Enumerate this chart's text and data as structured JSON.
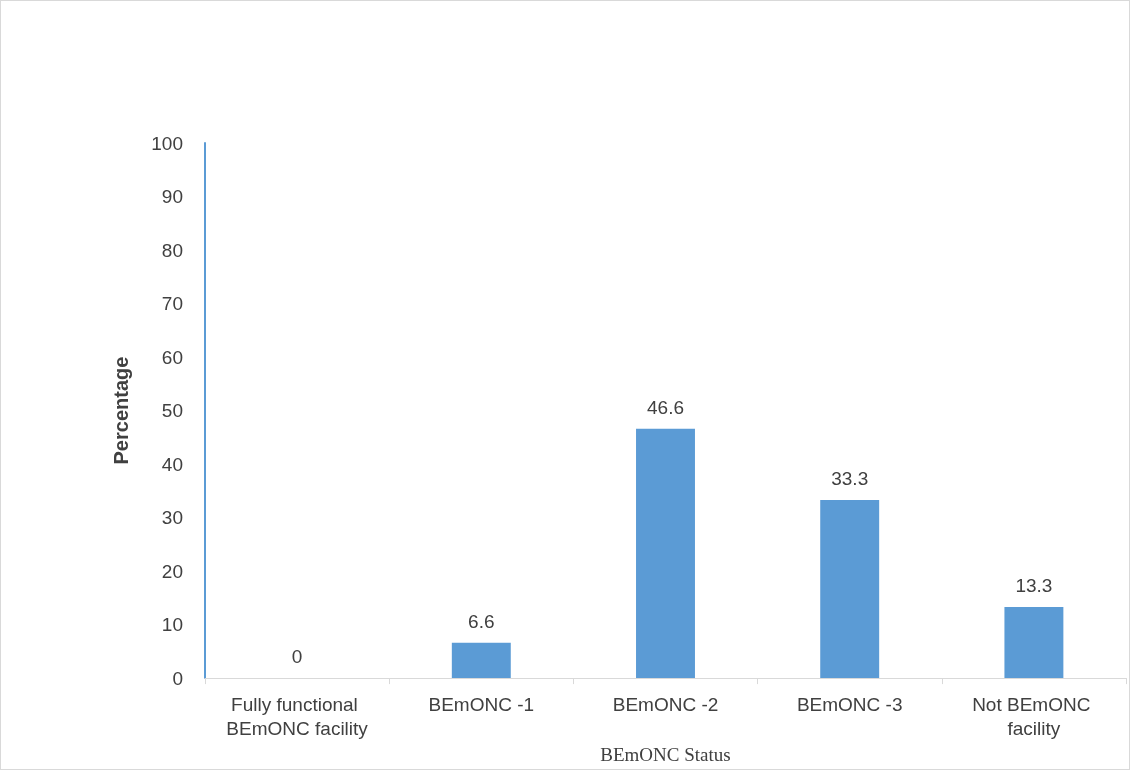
{
  "chart_data": {
    "type": "bar",
    "xlabel": "BEmONC Status",
    "ylabel": "Percentage",
    "categories": [
      "Fully functional BEmONC facility",
      "BEmONC -1",
      "BEmONC -2",
      "BEmONC -3",
      "Not BEmONC facility"
    ],
    "values": [
      0,
      6.6,
      46.6,
      33.3,
      13.3
    ],
    "color": "#5b9bd5",
    "ylim": [
      0,
      100
    ],
    "yticks": [
      0,
      10,
      20,
      30,
      40,
      50,
      60,
      70,
      80,
      90,
      100
    ],
    "grid": false,
    "data_labels": true
  }
}
